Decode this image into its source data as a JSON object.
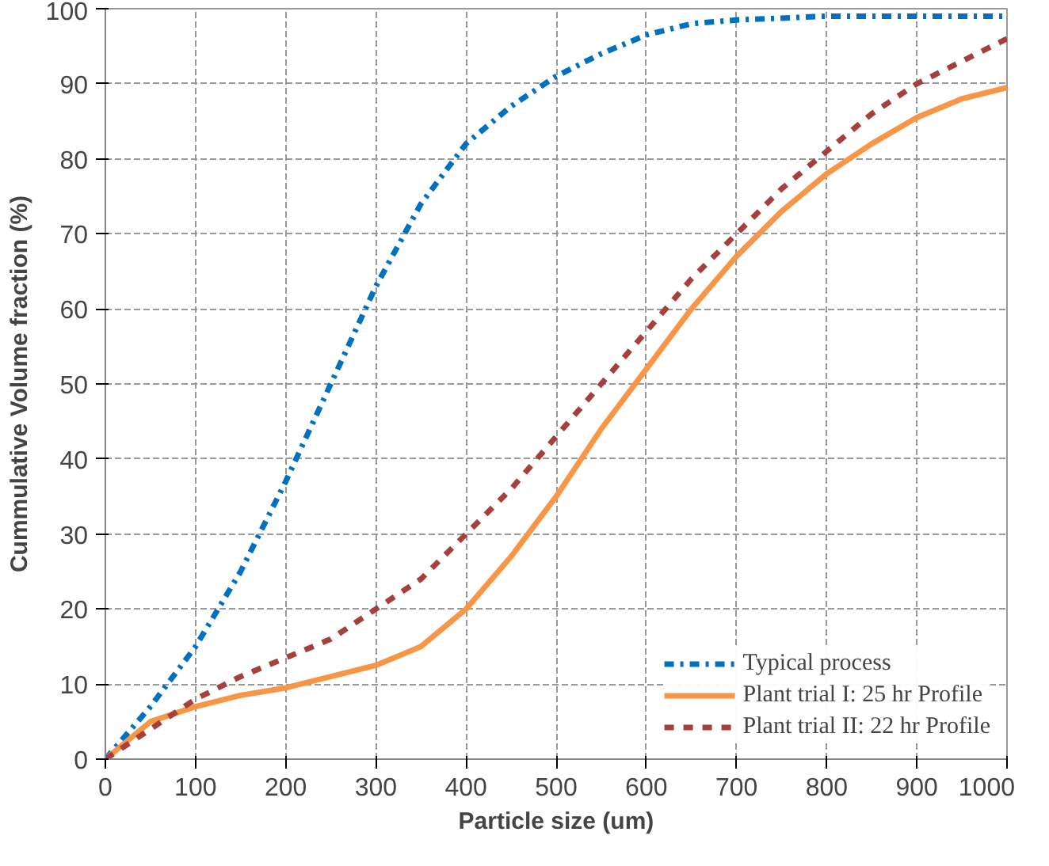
{
  "chart_data": {
    "type": "line",
    "xlabel": "Particle size (um)",
    "ylabel": "Cummulative Volume fraction (%)",
    "xlim": [
      0,
      1000
    ],
    "ylim": [
      0,
      100
    ],
    "xticks": [
      0,
      100,
      200,
      300,
      400,
      500,
      600,
      700,
      800,
      900,
      1000
    ],
    "yticks": [
      0,
      10,
      20,
      30,
      40,
      50,
      60,
      70,
      80,
      90,
      100
    ],
    "grid": true,
    "legend": "bottom right",
    "series": [
      {
        "name": "Typical process",
        "color": "#0070c0",
        "line_style": "dashdot",
        "x": [
          0,
          50,
          100,
          150,
          200,
          250,
          300,
          350,
          400,
          450,
          500,
          550,
          600,
          650,
          700,
          800,
          900,
          1000
        ],
        "values": [
          0,
          7,
          15,
          25,
          37,
          50,
          63,
          74,
          82,
          87,
          91,
          94,
          96.5,
          98,
          98.5,
          99,
          99,
          99
        ]
      },
      {
        "name": "Plant trial I: 25 hr Profile",
        "color": "#f79646",
        "line_style": "solid",
        "x": [
          0,
          50,
          100,
          150,
          200,
          250,
          300,
          350,
          400,
          450,
          500,
          550,
          600,
          650,
          700,
          750,
          800,
          850,
          900,
          950,
          1000
        ],
        "values": [
          0,
          5,
          7,
          8.5,
          9.5,
          11,
          12.5,
          15,
          20,
          27,
          35,
          44,
          52,
          60,
          67,
          73,
          78,
          82,
          85.5,
          88,
          89.5
        ]
      },
      {
        "name": "Plant trial II: 22 hr Profile",
        "color": "#a5403d",
        "line_style": "dashed",
        "x": [
          0,
          50,
          100,
          150,
          200,
          250,
          300,
          350,
          400,
          450,
          500,
          550,
          600,
          650,
          700,
          750,
          800,
          850,
          900,
          950,
          1000
        ],
        "values": [
          0,
          4,
          8,
          11,
          13.5,
          16,
          20,
          24,
          30,
          36,
          43,
          50,
          57,
          64,
          70,
          76,
          81,
          86,
          90,
          93,
          96
        ]
      }
    ]
  }
}
